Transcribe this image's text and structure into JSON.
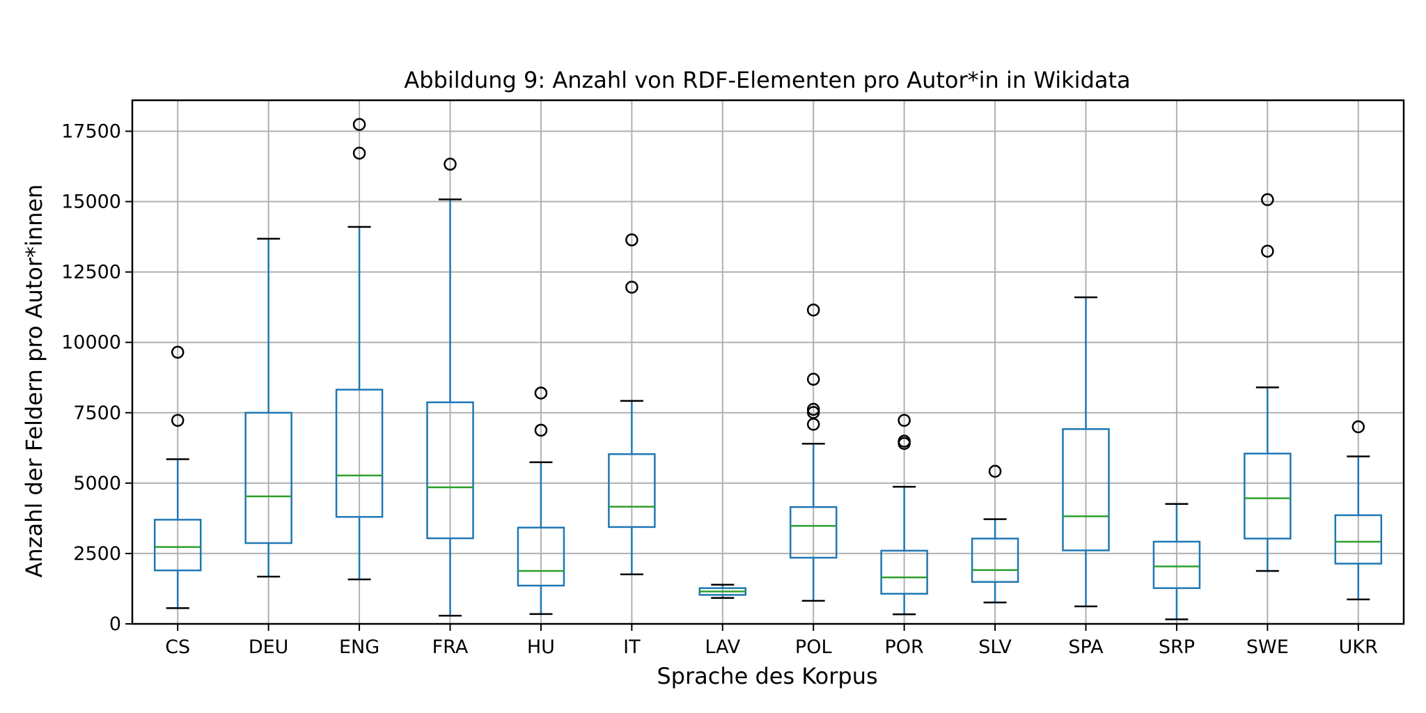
{
  "chart_data": {
    "type": "boxplot",
    "title": "Abbildung 9: Anzahl von RDF-Elementen pro Autor*in in Wikidata",
    "xlabel": "Sprache des Korpus",
    "ylabel": "Anzahl der Feldern pro Autor*innen",
    "ylim": [
      0,
      18600
    ],
    "yticks": [
      0,
      2500,
      5000,
      7500,
      10000,
      12500,
      15000,
      17500
    ],
    "grid": true,
    "colors": {
      "box": "#1f77b4",
      "median": "#2ca02c",
      "grid": "#b0b0b0",
      "axis": "#000000"
    },
    "categories": [
      "CS",
      "DEU",
      "ENG",
      "FRA",
      "HU",
      "IT",
      "LAV",
      "POL",
      "POR",
      "SLV",
      "SPA",
      "SRP",
      "SWE",
      "UKR"
    ],
    "boxes": [
      {
        "label": "CS",
        "whislo": 560,
        "q1": 1900,
        "med": 2730,
        "q3": 3700,
        "whishi": 5850,
        "fliers": [
          7230,
          9650
        ]
      },
      {
        "label": "DEU",
        "whislo": 1680,
        "q1": 2870,
        "med": 4530,
        "q3": 7500,
        "whishi": 13680,
        "fliers": []
      },
      {
        "label": "ENG",
        "whislo": 1580,
        "q1": 3800,
        "med": 5270,
        "q3": 8320,
        "whishi": 14100,
        "fliers": [
          16720,
          17740
        ]
      },
      {
        "label": "FRA",
        "whislo": 290,
        "q1": 3040,
        "med": 4850,
        "q3": 7870,
        "whishi": 15080,
        "fliers": [
          16330
        ]
      },
      {
        "label": "HU",
        "whislo": 350,
        "q1": 1360,
        "med": 1880,
        "q3": 3420,
        "whishi": 5740,
        "fliers": [
          6880,
          8200
        ]
      },
      {
        "label": "IT",
        "whislo": 1760,
        "q1": 3440,
        "med": 4160,
        "q3": 6030,
        "whishi": 7920,
        "fliers": [
          11960,
          13640
        ]
      },
      {
        "label": "LAV",
        "whislo": 920,
        "q1": 1030,
        "med": 1150,
        "q3": 1270,
        "whishi": 1390,
        "fliers": []
      },
      {
        "label": "POL",
        "whislo": 820,
        "q1": 2350,
        "med": 3480,
        "q3": 4150,
        "whishi": 6400,
        "fliers": [
          7090,
          7510,
          7620,
          8690,
          11150
        ]
      },
      {
        "label": "POR",
        "whislo": 340,
        "q1": 1070,
        "med": 1650,
        "q3": 2600,
        "whishi": 4870,
        "fliers": [
          6410,
          6490,
          7230
        ]
      },
      {
        "label": "SLV",
        "whislo": 760,
        "q1": 1490,
        "med": 1910,
        "q3": 3030,
        "whishi": 3720,
        "fliers": [
          5420
        ]
      },
      {
        "label": "SPA",
        "whislo": 620,
        "q1": 2610,
        "med": 3820,
        "q3": 6920,
        "whishi": 11600,
        "fliers": []
      },
      {
        "label": "SRP",
        "whislo": 160,
        "q1": 1270,
        "med": 2040,
        "q3": 2920,
        "whishi": 4260,
        "fliers": []
      },
      {
        "label": "SWE",
        "whislo": 1880,
        "q1": 3030,
        "med": 4460,
        "q3": 6050,
        "whishi": 8400,
        "fliers": [
          13240,
          15070
        ]
      },
      {
        "label": "UKR",
        "whislo": 870,
        "q1": 2140,
        "med": 2920,
        "q3": 3860,
        "whishi": 5950,
        "fliers": [
          7000
        ]
      }
    ]
  }
}
